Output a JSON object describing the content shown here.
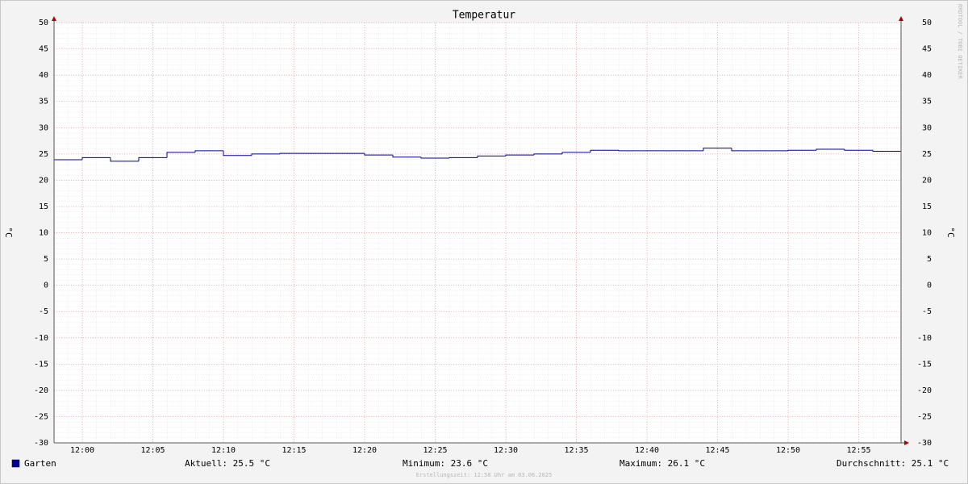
{
  "chart_data": {
    "type": "step",
    "title": "Temperatur",
    "y_label": "°C",
    "x": [
      718,
      720,
      722,
      724,
      726,
      728,
      730,
      732,
      734,
      736,
      738,
      740,
      742,
      744,
      746,
      748,
      750,
      752,
      754,
      756,
      758,
      760,
      762,
      764,
      766,
      768,
      770,
      772,
      774,
      776
    ],
    "series": [
      {
        "name": "Garten",
        "color": "#000099",
        "values": [
          23.9,
          24.3,
          23.6,
          24.3,
          25.3,
          25.6,
          24.7,
          25.0,
          25.1,
          25.1,
          25.1,
          24.8,
          24.4,
          24.2,
          24.3,
          24.6,
          24.8,
          25.0,
          25.3,
          25.7,
          25.6,
          25.6,
          25.6,
          26.1,
          25.6,
          25.6,
          25.7,
          25.9,
          25.7,
          25.5
        ]
      }
    ],
    "xlim": [
      718,
      778
    ],
    "xticks": [
      {
        "value": 720,
        "label": "12:00"
      },
      {
        "value": 725,
        "label": "12:05"
      },
      {
        "value": 730,
        "label": "12:10"
      },
      {
        "value": 735,
        "label": "12:15"
      },
      {
        "value": 740,
        "label": "12:20"
      },
      {
        "value": 745,
        "label": "12:25"
      },
      {
        "value": 750,
        "label": "12:30"
      },
      {
        "value": 755,
        "label": "12:35"
      },
      {
        "value": 760,
        "label": "12:40"
      },
      {
        "value": 765,
        "label": "12:45"
      },
      {
        "value": 770,
        "label": "12:50"
      },
      {
        "value": 775,
        "label": "12:55"
      }
    ],
    "ylim": [
      -30,
      50
    ],
    "yticks": [
      -30,
      -25,
      -20,
      -15,
      -10,
      -5,
      0,
      5,
      10,
      15,
      20,
      25,
      30,
      35,
      40,
      45,
      50
    ],
    "grid": true,
    "stats": [
      {
        "label": "Aktuell:",
        "value": 25.5
      },
      {
        "label": "Minimum:",
        "value": 23.6
      },
      {
        "label": "Maximum:",
        "value": 26.1
      },
      {
        "label": "Durchschnitt:",
        "value": 25.1
      }
    ],
    "footer": "Erstellungszeit: 12:58 Uhr am 03.06.2025",
    "watermark": "RRDTOOL / TOBI OETIKER"
  }
}
